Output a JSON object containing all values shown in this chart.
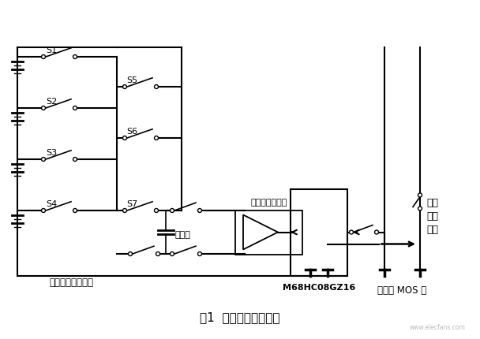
{
  "title": "图1  飞电容保护原理图",
  "background_color": "#ffffff",
  "line_color": "#000000",
  "fig_width": 6.08,
  "fig_height": 4.3,
  "labels": {
    "S1": "S1",
    "S2": "S2",
    "S3": "S3",
    "S4": "S4",
    "S5": "S5",
    "S6": "S6",
    "S7": "S7",
    "flying_cap": "飞电容",
    "switch_array": "四通道的开关阵列",
    "overdischarge": "过放电控制信号",
    "overcharge": "过充\n控制\n信号",
    "mos": "充放电 MOS 管",
    "ic": "M68HC08GZ16"
  }
}
